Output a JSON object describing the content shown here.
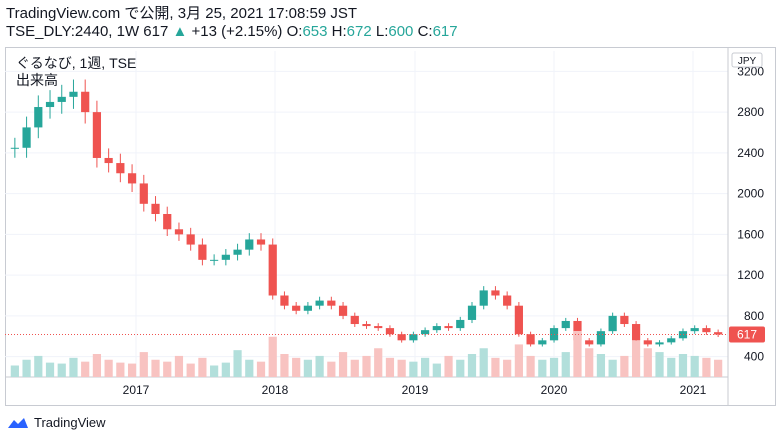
{
  "header": {
    "publish_line": "TradingView.com で公開, 3月 25, 2021 17:08:59 JST",
    "symbol": "TSE_DLY:2440, 1W",
    "last": "617",
    "change_icon": "triangle-up-icon",
    "change": "+13 (+2.15%)",
    "open_label": "O:",
    "open": "653",
    "high_label": "H:",
    "high": "672",
    "low_label": "L:",
    "low": "600",
    "close_label": "C:",
    "close": "617"
  },
  "legend": {
    "title": "ぐるなび, 1週, TSE",
    "volume_label": "出来高"
  },
  "footer": {
    "brand_icon": "tradingview-logo-icon",
    "brand": "TradingView"
  },
  "colors": {
    "up": "#26a69a",
    "down": "#ef5350",
    "last_price_bg": "#ef5350"
  },
  "chart_data": {
    "type": "candlestick",
    "currency_label": "JPY",
    "last_price_label": "617",
    "ylim": [
      200,
      3400
    ],
    "y_ticks": [
      400,
      800,
      1200,
      1600,
      2000,
      2400,
      2800,
      3200
    ],
    "x_ticks": [
      "2017",
      "2018",
      "2019",
      "2020",
      "2021"
    ],
    "grid": true,
    "series": [
      {
        "name": "price",
        "x": [
          "2016-03",
          "2016-04",
          "2016-05",
          "2016-06",
          "2016-07",
          "2016-08",
          "2016-09",
          "2016-10",
          "2016-11",
          "2016-12",
          "2017-01",
          "2017-02",
          "2017-03",
          "2017-04",
          "2017-05",
          "2017-06",
          "2017-07",
          "2017-08",
          "2017-09",
          "2017-10",
          "2017-11",
          "2017-12",
          "2018-01",
          "2018-02",
          "2018-03",
          "2018-04",
          "2018-05",
          "2018-06",
          "2018-07",
          "2018-08",
          "2018-09",
          "2018-10",
          "2018-11",
          "2018-12",
          "2019-01",
          "2019-02",
          "2019-03",
          "2019-04",
          "2019-05",
          "2019-06",
          "2019-07",
          "2019-08",
          "2019-09",
          "2019-10",
          "2019-11",
          "2019-12",
          "2020-01",
          "2020-02",
          "2020-03",
          "2020-04",
          "2020-05",
          "2020-06",
          "2020-07",
          "2020-08",
          "2020-09",
          "2020-10",
          "2020-11",
          "2020-12",
          "2021-01",
          "2021-02",
          "2021-03"
        ],
        "values": [
          2450,
          2650,
          2850,
          2900,
          2950,
          3000,
          2800,
          2350,
          2300,
          2200,
          2100,
          1900,
          1800,
          1650,
          1600,
          1500,
          1350,
          1350,
          1400,
          1450,
          1550,
          1500,
          1000,
          900,
          850,
          900,
          950,
          900,
          800,
          720,
          700,
          680,
          620,
          560,
          620,
          660,
          700,
          680,
          760,
          900,
          1050,
          1000,
          900,
          620,
          520,
          560,
          680,
          750,
          560,
          520,
          650,
          800,
          720,
          560,
          520,
          540,
          580,
          650,
          680,
          640,
          617
        ]
      }
    ],
    "volume": {
      "name": "出来高",
      "values": [
        12,
        18,
        22,
        15,
        14,
        20,
        16,
        24,
        18,
        15,
        14,
        26,
        18,
        16,
        22,
        14,
        20,
        12,
        15,
        28,
        18,
        16,
        42,
        24,
        20,
        18,
        22,
        16,
        26,
        18,
        22,
        30,
        20,
        18,
        16,
        20,
        14,
        22,
        18,
        24,
        30,
        20,
        18,
        34,
        22,
        18,
        20,
        26,
        48,
        30,
        24,
        18,
        22,
        38,
        30,
        26,
        20,
        24,
        22,
        20,
        18
      ]
    }
  }
}
